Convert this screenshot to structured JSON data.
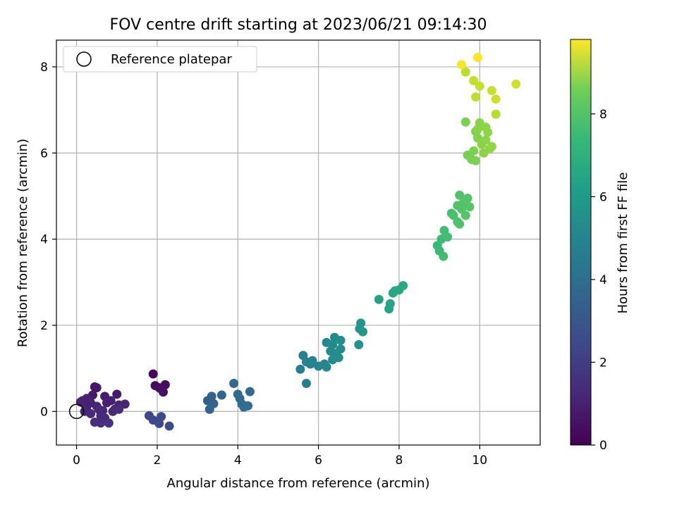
{
  "chart_data": {
    "type": "scatter",
    "title": "FOV centre drift starting at 2023/06/21 09:14:30",
    "xlabel": "Angular distance from reference (arcmin)",
    "ylabel": "Rotation from reference (arcmin)",
    "xlim": [
      -0.5,
      11.5
    ],
    "ylim": [
      -0.78,
      8.62
    ],
    "xticks": [
      0,
      2,
      4,
      6,
      8,
      10
    ],
    "yticks": [
      0,
      2,
      4,
      6,
      8
    ],
    "grid": true,
    "legend": {
      "placement": "top-left",
      "entries": [
        "Reference platepar"
      ]
    },
    "reference_point": {
      "x": 0,
      "y": 0
    },
    "colorbar": {
      "label": "Hours from first FF file",
      "range": [
        0,
        9.8
      ],
      "ticks": [
        0,
        2,
        4,
        6,
        8
      ],
      "colormap": "viridis"
    },
    "points": [
      {
        "x": 1.9,
        "y": 0.87,
        "h": 0.2
      },
      {
        "x": 1.95,
        "y": 0.6,
        "h": 0.3
      },
      {
        "x": 2.05,
        "y": 0.55,
        "h": 0.35
      },
      {
        "x": 2.15,
        "y": 0.45,
        "h": 0.4
      },
      {
        "x": 2.2,
        "y": 0.62,
        "h": 0.3
      },
      {
        "x": 2.1,
        "y": 0.52,
        "h": 0.45
      },
      {
        "x": 0.15,
        "y": 0.25,
        "h": 0.8
      },
      {
        "x": 0.25,
        "y": 0.1,
        "h": 0.9
      },
      {
        "x": 0.3,
        "y": 0.3,
        "h": 0.85
      },
      {
        "x": 0.4,
        "y": 0.38,
        "h": 0.7
      },
      {
        "x": 0.45,
        "y": 0.57,
        "h": 0.6
      },
      {
        "x": 0.5,
        "y": 0.55,
        "h": 0.65
      },
      {
        "x": 0.2,
        "y": 0.0,
        "h": 1.0
      },
      {
        "x": 0.35,
        "y": 0.2,
        "h": 0.95
      },
      {
        "x": 0.55,
        "y": 0.05,
        "h": 1.1
      },
      {
        "x": 0.6,
        "y": -0.1,
        "h": 1.2
      },
      {
        "x": 0.7,
        "y": 0.35,
        "h": 0.75
      },
      {
        "x": 0.75,
        "y": 0.2,
        "h": 0.9
      },
      {
        "x": 0.85,
        "y": 0.25,
        "h": 0.85
      },
      {
        "x": 0.95,
        "y": 0.05,
        "h": 1.05
      },
      {
        "x": 1.0,
        "y": 0.4,
        "h": 0.7
      },
      {
        "x": 1.05,
        "y": 0.15,
        "h": 0.95
      },
      {
        "x": 1.2,
        "y": 0.17,
        "h": 1.0
      },
      {
        "x": 0.45,
        "y": -0.25,
        "h": 1.3
      },
      {
        "x": 0.6,
        "y": -0.27,
        "h": 1.35
      },
      {
        "x": 0.7,
        "y": -0.15,
        "h": 1.3
      },
      {
        "x": 0.8,
        "y": -0.27,
        "h": 1.4
      },
      {
        "x": 0.35,
        "y": -0.05,
        "h": 1.15
      },
      {
        "x": 0.5,
        "y": 0.12,
        "h": 1.05
      },
      {
        "x": 0.65,
        "y": 0.02,
        "h": 1.15
      },
      {
        "x": 0.9,
        "y": 0.0,
        "h": 1.2
      },
      {
        "x": 1.05,
        "y": 0.05,
        "h": 1.25
      },
      {
        "x": 0.25,
        "y": 0.3,
        "h": 0.9
      },
      {
        "x": 0.1,
        "y": 0.22,
        "h": 0.95
      },
      {
        "x": 1.8,
        "y": -0.1,
        "h": 2.1
      },
      {
        "x": 1.9,
        "y": -0.2,
        "h": 2.15
      },
      {
        "x": 2.05,
        "y": -0.28,
        "h": 2.2
      },
      {
        "x": 2.1,
        "y": -0.12,
        "h": 2.2
      },
      {
        "x": 2.3,
        "y": -0.34,
        "h": 2.3
      },
      {
        "x": 3.25,
        "y": 0.25,
        "h": 3.0
      },
      {
        "x": 3.3,
        "y": 0.05,
        "h": 3.1
      },
      {
        "x": 3.35,
        "y": 0.35,
        "h": 3.05
      },
      {
        "x": 3.4,
        "y": 0.18,
        "h": 3.15
      },
      {
        "x": 3.6,
        "y": 0.38,
        "h": 3.2
      },
      {
        "x": 3.9,
        "y": 0.65,
        "h": 3.3
      },
      {
        "x": 4.0,
        "y": 0.4,
        "h": 3.35
      },
      {
        "x": 4.05,
        "y": 0.3,
        "h": 3.4
      },
      {
        "x": 4.1,
        "y": 0.17,
        "h": 3.45
      },
      {
        "x": 4.15,
        "y": 0.1,
        "h": 3.5
      },
      {
        "x": 4.25,
        "y": 0.13,
        "h": 3.5
      },
      {
        "x": 4.3,
        "y": 0.46,
        "h": 3.45
      },
      {
        "x": 5.55,
        "y": 0.98,
        "h": 4.2
      },
      {
        "x": 5.62,
        "y": 1.3,
        "h": 4.3
      },
      {
        "x": 5.7,
        "y": 0.65,
        "h": 4.25
      },
      {
        "x": 5.7,
        "y": 1.15,
        "h": 4.35
      },
      {
        "x": 5.8,
        "y": 1.1,
        "h": 4.4
      },
      {
        "x": 5.85,
        "y": 1.18,
        "h": 4.45
      },
      {
        "x": 6.0,
        "y": 1.05,
        "h": 4.5
      },
      {
        "x": 6.15,
        "y": 1.1,
        "h": 4.55
      },
      {
        "x": 6.2,
        "y": 1.6,
        "h": 4.6
      },
      {
        "x": 6.2,
        "y": 1.03,
        "h": 4.55
      },
      {
        "x": 6.3,
        "y": 1.4,
        "h": 4.65
      },
      {
        "x": 6.35,
        "y": 1.55,
        "h": 4.7
      },
      {
        "x": 6.4,
        "y": 1.72,
        "h": 4.7
      },
      {
        "x": 6.45,
        "y": 1.35,
        "h": 4.75
      },
      {
        "x": 6.5,
        "y": 1.25,
        "h": 4.8
      },
      {
        "x": 6.55,
        "y": 1.45,
        "h": 4.8
      },
      {
        "x": 6.55,
        "y": 1.65,
        "h": 4.85
      },
      {
        "x": 6.35,
        "y": 1.2,
        "h": 4.75
      },
      {
        "x": 7.0,
        "y": 1.55,
        "h": 5.1
      },
      {
        "x": 7.02,
        "y": 1.92,
        "h": 5.15
      },
      {
        "x": 7.05,
        "y": 2.05,
        "h": 5.2
      },
      {
        "x": 7.1,
        "y": 1.85,
        "h": 5.2
      },
      {
        "x": 7.5,
        "y": 2.6,
        "h": 5.6
      },
      {
        "x": 7.75,
        "y": 2.38,
        "h": 5.7
      },
      {
        "x": 7.78,
        "y": 2.5,
        "h": 5.75
      },
      {
        "x": 7.85,
        "y": 2.75,
        "h": 5.8
      },
      {
        "x": 7.9,
        "y": 2.8,
        "h": 5.85
      },
      {
        "x": 8.0,
        "y": 2.82,
        "h": 5.9
      },
      {
        "x": 8.1,
        "y": 2.92,
        "h": 5.95
      },
      {
        "x": 8.95,
        "y": 3.85,
        "h": 6.6
      },
      {
        "x": 9.0,
        "y": 3.73,
        "h": 6.65
      },
      {
        "x": 9.05,
        "y": 4.0,
        "h": 6.7
      },
      {
        "x": 9.1,
        "y": 3.6,
        "h": 6.75
      },
      {
        "x": 9.12,
        "y": 4.2,
        "h": 6.8
      },
      {
        "x": 9.2,
        "y": 4.05,
        "h": 6.8
      },
      {
        "x": 9.3,
        "y": 4.6,
        "h": 6.9
      },
      {
        "x": 9.35,
        "y": 4.55,
        "h": 6.95
      },
      {
        "x": 9.45,
        "y": 4.4,
        "h": 7.0
      },
      {
        "x": 9.5,
        "y": 4.35,
        "h": 7.05
      },
      {
        "x": 9.5,
        "y": 5.02,
        "h": 7.05
      },
      {
        "x": 9.55,
        "y": 4.7,
        "h": 7.1
      },
      {
        "x": 9.6,
        "y": 4.85,
        "h": 7.1
      },
      {
        "x": 9.65,
        "y": 4.55,
        "h": 7.15
      },
      {
        "x": 9.7,
        "y": 4.95,
        "h": 7.15
      },
      {
        "x": 9.75,
        "y": 4.75,
        "h": 7.2
      },
      {
        "x": 9.45,
        "y": 4.78,
        "h": 7.05
      },
      {
        "x": 9.65,
        "y": 6.72,
        "h": 7.8
      },
      {
        "x": 9.7,
        "y": 5.95,
        "h": 7.7
      },
      {
        "x": 9.8,
        "y": 5.85,
        "h": 7.75
      },
      {
        "x": 9.85,
        "y": 6.05,
        "h": 7.8
      },
      {
        "x": 9.9,
        "y": 5.82,
        "h": 7.85
      },
      {
        "x": 9.9,
        "y": 6.5,
        "h": 7.9
      },
      {
        "x": 9.95,
        "y": 6.35,
        "h": 7.95
      },
      {
        "x": 10.0,
        "y": 6.7,
        "h": 8.0
      },
      {
        "x": 10.05,
        "y": 6.2,
        "h": 8.0
      },
      {
        "x": 10.1,
        "y": 6.0,
        "h": 8.05
      },
      {
        "x": 10.15,
        "y": 6.6,
        "h": 8.1
      },
      {
        "x": 10.15,
        "y": 6.3,
        "h": 8.05
      },
      {
        "x": 10.2,
        "y": 6.48,
        "h": 8.1
      },
      {
        "x": 10.25,
        "y": 6.1,
        "h": 8.15
      },
      {
        "x": 10.3,
        "y": 6.15,
        "h": 8.15
      },
      {
        "x": 9.95,
        "y": 6.55,
        "h": 8.0
      },
      {
        "x": 9.65,
        "y": 7.88,
        "h": 8.8
      },
      {
        "x": 9.85,
        "y": 7.68,
        "h": 8.9
      },
      {
        "x": 9.9,
        "y": 7.3,
        "h": 8.85
      },
      {
        "x": 10.0,
        "y": 7.55,
        "h": 8.95
      },
      {
        "x": 10.3,
        "y": 7.45,
        "h": 9.0
      },
      {
        "x": 10.4,
        "y": 7.25,
        "h": 9.05
      },
      {
        "x": 10.4,
        "y": 6.9,
        "h": 8.7
      },
      {
        "x": 10.9,
        "y": 7.6,
        "h": 9.1
      },
      {
        "x": 9.55,
        "y": 8.05,
        "h": 9.7
      },
      {
        "x": 9.95,
        "y": 8.22,
        "h": 9.8
      }
    ]
  }
}
